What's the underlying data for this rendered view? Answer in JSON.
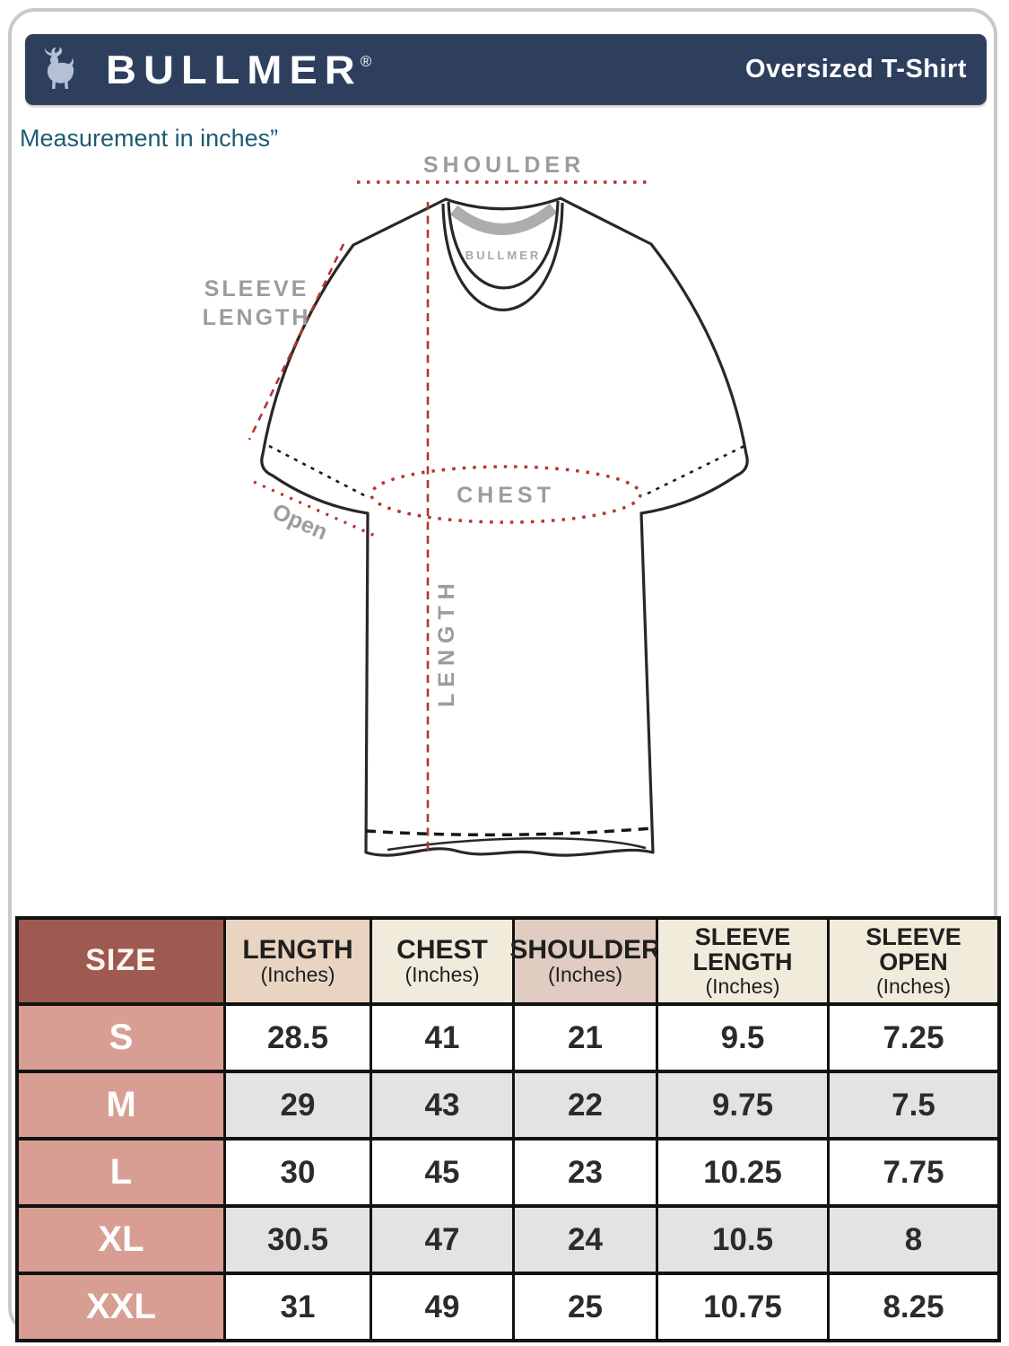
{
  "header": {
    "brand": "BULLMER",
    "registered_mark": "®",
    "product": "Oversized T-Shirt",
    "bar_color": "#2e3f5e",
    "logo_color": "#b5c0d4"
  },
  "note": "Measurement in inches”",
  "diagram": {
    "shoulder_label": "SHOULDER",
    "sleeve_label_line1": "SLEEVE",
    "sleeve_label_line2": "LENGTH",
    "open_label": "Open",
    "chest_label": "CHEST",
    "length_label": "LENGTH",
    "collar_brand": "BULLMER",
    "dash_red_color": "#b33630",
    "dash_black_color": "#171717",
    "outline_color": "#2b2627",
    "label_color": "#9c9c9c"
  },
  "table": {
    "columns": [
      {
        "label": "SIZE",
        "sub": ""
      },
      {
        "label": "LENGTH",
        "sub": "(Inches)"
      },
      {
        "label": "CHEST",
        "sub": "(Inches)"
      },
      {
        "label": "SHOULDER",
        "sub": "(Inches)"
      },
      {
        "label": "SLEEVE LENGTH",
        "sub": "(Inches)"
      },
      {
        "label": "SLEEVE OPEN",
        "sub": "(Inches)"
      }
    ],
    "rows": [
      {
        "size": "S",
        "values": [
          "28.5",
          "41",
          "21",
          "9.5",
          "7.25"
        ]
      },
      {
        "size": "M",
        "values": [
          "29",
          "43",
          "22",
          "9.75",
          "7.5"
        ]
      },
      {
        "size": "L",
        "values": [
          "30",
          "45",
          "23",
          "10.25",
          "7.75"
        ]
      },
      {
        "size": "XL",
        "values": [
          "30.5",
          "47",
          "24",
          "10.5",
          "8"
        ]
      },
      {
        "size": "XXL",
        "values": [
          "31",
          "49",
          "25",
          "10.75",
          "8.25"
        ]
      }
    ],
    "colors": {
      "size_header_bg": "#9e5a50",
      "size_col_bg": "#d99e93",
      "header_tan_bg": "#e9d3c1",
      "header_cream_bg": "#f1ebdb",
      "header_pink_bg": "#e0ccc0",
      "row_alt_bg": "#e3e3e5",
      "grid_color": "#121212"
    }
  }
}
